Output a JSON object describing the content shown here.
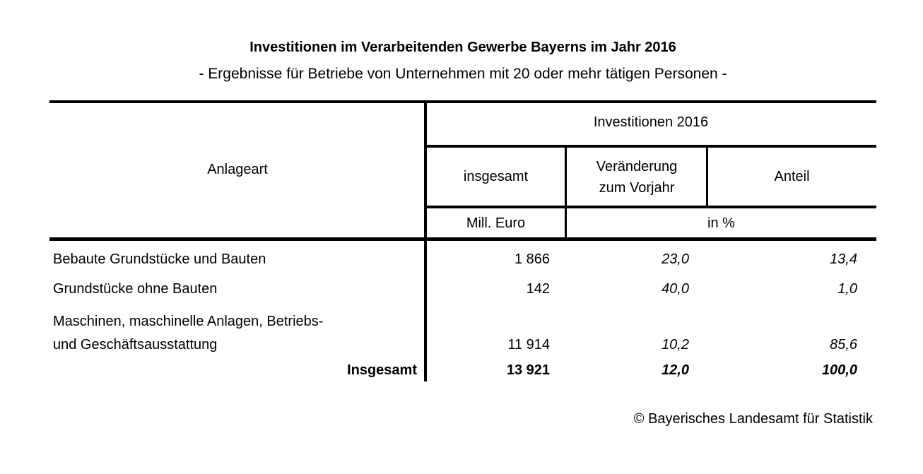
{
  "title": "Investitionen im Verarbeitenden Gewerbe Bayerns im Jahr 2016",
  "subtitle": "- Ergebnisse für Betriebe von Unternehmen mit 20 oder mehr tätigen Personen -",
  "table": {
    "header": {
      "anlageart": "Anlageart",
      "group": "Investitionen 2016",
      "insgesamt": "insgesamt",
      "veraenderung": "Veränderung\nzum Vorjahr",
      "anteil": "Anteil",
      "unit_euro": "Mill. Euro",
      "unit_percent": "in %"
    },
    "rows": [
      {
        "label": "Bebaute Grundstücke und Bauten",
        "insgesamt": "1 866",
        "veraenderung": "23,0",
        "anteil": "13,4"
      },
      {
        "label": "Grundstücke ohne Bauten",
        "insgesamt": "142",
        "veraenderung": "40,0",
        "anteil": "1,0"
      },
      {
        "label": "Maschinen, maschinelle Anlagen, Betriebs-\nund Geschäftsausstattung",
        "insgesamt": "11 914",
        "veraenderung": "10,2",
        "anteil": "85,6"
      },
      {
        "label": "Insgesamt",
        "insgesamt": "13 921",
        "veraenderung": "12,0",
        "anteil": "100,0"
      }
    ]
  },
  "footer": {
    "copyright": "© Bayerisches Landesamt für Statistik"
  }
}
